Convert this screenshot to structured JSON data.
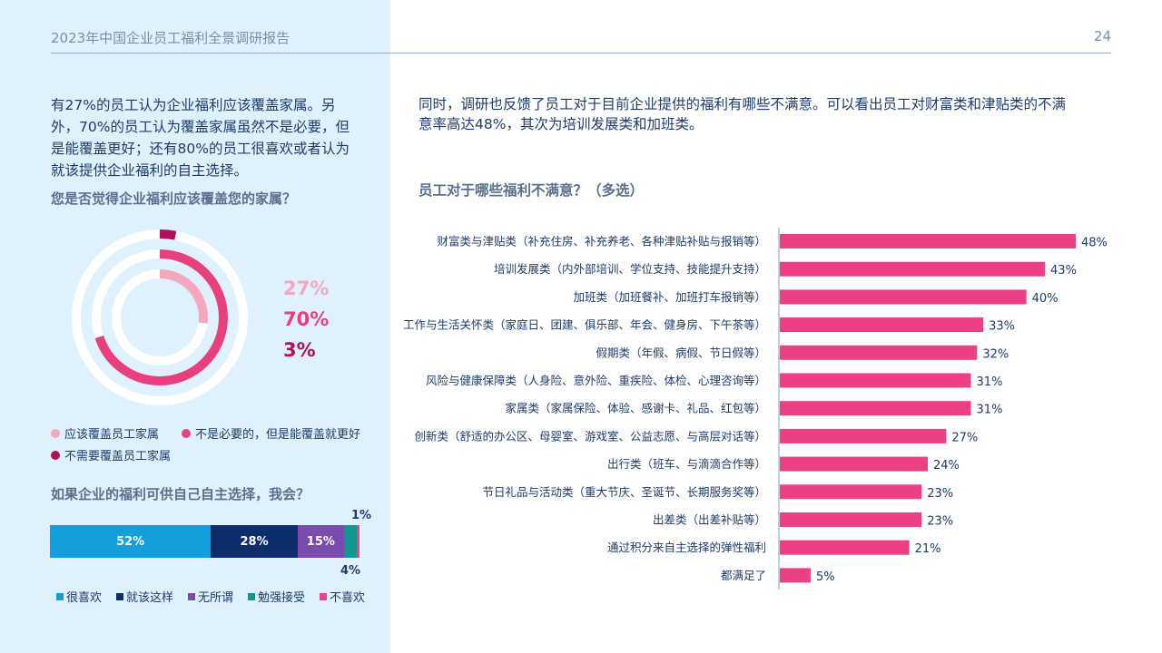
{
  "header": {
    "title": "2023年中国企业员工福利全景调研报告",
    "page_number": "24"
  },
  "left": {
    "intro": "有27%的员工认为企业福利应该覆盖家属。另外，70%的员工认为覆盖家属虽然不是必要，但是能覆盖更好；还有80%的员工很喜欢或者认为就该提供企业福利的自主选择。",
    "q1_title": "您是否觉得企业福利应该覆盖您的家属？",
    "q2_title": "如果企业的福利可供自己自主选择，我会？"
  },
  "right": {
    "intro": "同时，调研也反馈了员工对于目前企业提供的福利有哪些不满意。可以看出员工对财富类和津贴类的不满意率高达48%，其次为培训发展类和加班类。"
  },
  "colors": {
    "light_pink": "#f4a7bd",
    "pink": "#e8407f",
    "magenta": "#b0115c",
    "light_blue": "#149fdc",
    "navy": "#0d2d6b",
    "purple": "#7a4aad",
    "teal": "#13968f",
    "bar_pink": "#ec3f86"
  },
  "chart_data": [
    {
      "type": "pie",
      "title": "您是否觉得企业福利应该覆盖您的家属？",
      "categories": [
        "应该覆盖员工家属",
        "不是必要的，但是能覆盖就更好",
        "不需要覆盖员工家属"
      ],
      "values": [
        27,
        70,
        3
      ],
      "value_labels": [
        "27%",
        "70%",
        "3%"
      ],
      "legend": "bottom"
    },
    {
      "type": "bar",
      "stacked": true,
      "orientation": "horizontal",
      "title": "如果企业的福利可供自己自主选择，我会？",
      "categories": [
        "很喜欢",
        "就该这样",
        "无所谓",
        "勉强接受",
        "不喜欢"
      ],
      "values": [
        52,
        28,
        15,
        4,
        1
      ],
      "value_labels": [
        "52%",
        "28%",
        "15%",
        "4%",
        "1%"
      ],
      "legend": "bottom"
    },
    {
      "type": "bar",
      "orientation": "horizontal",
      "title": "员工对于哪些福利不满意？（多选）",
      "categories": [
        "财富类与津贴类（补充住房、补充养老、各种津贴补贴与报销等）",
        "培训发展类（内外部培训、学位支持、技能提升支持）",
        "加班类（加班餐补、加班打车报销等）",
        "工作与生活关怀类（家庭日、团建、俱乐部、年会、健身房、下午茶等）",
        "假期类（年假、病假、节日假等）",
        "风险与健康保障类（人身险、意外险、重疾险、体检、心理咨询等）",
        "家属类（家属保险、体验、感谢卡、礼品、红包等）",
        "创新类（舒适的办公区、母婴室、游戏室、公益志愿、与高层对话等）",
        "出行类（班车、与滴滴合作等）",
        "节日礼品与活动类（重大节庆、圣诞节、长期服务奖等）",
        "出差类（出差补贴等）",
        "通过积分来自主选择的弹性福利",
        "都满足了"
      ],
      "values": [
        48,
        43,
        40,
        33,
        32,
        31,
        31,
        27,
        24,
        23,
        23,
        21,
        5
      ],
      "value_labels": [
        "48%",
        "43%",
        "40%",
        "33%",
        "32%",
        "31%",
        "31%",
        "27%",
        "24%",
        "23%",
        "23%",
        "21%",
        "5%"
      ]
    }
  ]
}
